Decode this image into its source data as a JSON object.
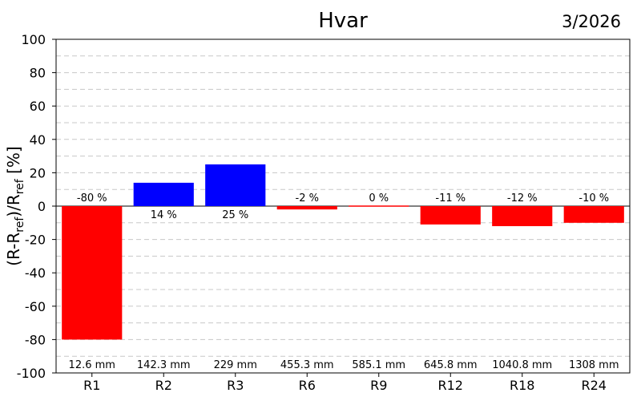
{
  "chart_data": {
    "type": "bar",
    "title": "Hvar",
    "date_label": "3/2026",
    "ylabel_parts": {
      "open": "(R-R",
      "sub1": "ref",
      "mid": ")/R",
      "sub2": "ref",
      "close": " [%]"
    },
    "categories": [
      "R1",
      "R2",
      "R3",
      "R6",
      "R9",
      "R12",
      "R18",
      "R24"
    ],
    "values": [
      -80,
      14,
      25,
      -2,
      0,
      -11,
      -12,
      -10
    ],
    "value_labels": [
      "-80 %",
      "14 %",
      "25 %",
      "-2 %",
      "0 %",
      "-11 %",
      "-12 %",
      "-10 %"
    ],
    "amount_labels": [
      "12.6 mm",
      "142.3 mm",
      "229 mm",
      "455.3 mm",
      "585.1 mm",
      "645.8 mm",
      "1040.8 mm",
      "1308 mm"
    ],
    "ylim": [
      -100,
      100
    ],
    "yticks": [
      100,
      80,
      60,
      40,
      20,
      0,
      -20,
      -40,
      -60,
      -80,
      -100
    ],
    "grid": true,
    "colors": {
      "positive": "#0000ff",
      "negative": "#ff0000"
    }
  }
}
